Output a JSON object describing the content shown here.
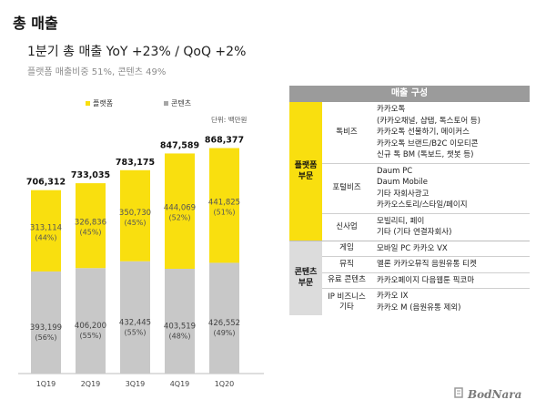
{
  "page_title": "총 매출",
  "headline": "1분기 총 매출  YoY +23% / QoQ +2%",
  "subline": "플랫폼 매출비중 51%, 콘텐츠 49%",
  "unit": "단위: 백만원",
  "legend": [
    {
      "name": "플랫폼",
      "color": "#f9df0f"
    },
    {
      "name": "콘텐츠",
      "color": "#a6a6a6"
    }
  ],
  "chart_data": {
    "type": "bar",
    "stacked": true,
    "categories": [
      "1Q19",
      "2Q19",
      "3Q19",
      "4Q19",
      "1Q20"
    ],
    "series": [
      {
        "name": "콘텐츠",
        "color": "#c8c8c8",
        "values": [
          393199,
          406200,
          432445,
          403519,
          426552
        ],
        "value_labels": [
          "393,199",
          "406,200",
          "432,445",
          "403,519",
          "426,552"
        ],
        "share_labels": [
          "(56%)",
          "(55%)",
          "(55%)",
          "(48%)",
          "(49%)"
        ]
      },
      {
        "name": "플랫폼",
        "color": "#f9df0f",
        "values": [
          313114,
          326836,
          350730,
          444069,
          441825
        ],
        "value_labels": [
          "313,114",
          "326,836",
          "350,730",
          "444,069",
          "441,825"
        ],
        "share_labels": [
          "(44%)",
          "(45%)",
          "(45%)",
          "(52%)",
          "(51%)"
        ]
      }
    ],
    "totals": [
      706312,
      733035,
      783175,
      847589,
      868377
    ],
    "total_labels": [
      "706,312",
      "733,035",
      "783,175",
      "847,589",
      "868,377"
    ],
    "ylim": [
      0,
      900000
    ],
    "grid": false,
    "legend_position": "top-left"
  },
  "table": {
    "header": "매출 구성",
    "sections": [
      {
        "category": "플랫폼\n부문",
        "style": "platform",
        "groups": [
          {
            "name": "톡비즈",
            "items": [
              "카카오톡",
              "(카카오채널, 샵탭, 톡스토어 등)",
              "카카오톡 선물하기, 메이커스",
              "카카오톡 브랜드/B2C 이모티콘",
              "신규 톡 BM (톡보드, 챗봇 등)"
            ]
          },
          {
            "name": "포털비즈",
            "items": [
              "Daum PC",
              "Daum Mobile",
              "기타 자회사광고",
              "카카오스토리/스타일/페이지"
            ]
          },
          {
            "name": "신사업",
            "items": [
              "모빌리티, 페이",
              "기타 (기타 연결자회사)"
            ]
          }
        ]
      },
      {
        "category": "콘텐츠\n부문",
        "style": "content",
        "groups": [
          {
            "name": "게임",
            "items": [
              "모바일    PC     카카오 VX"
            ]
          },
          {
            "name": "뮤직",
            "items": [
              "멜론    카카오뮤직   음원유통   티켓"
            ]
          },
          {
            "name": "유료 콘텐츠",
            "items": [
              "카카오페이지   다음웹툰   픽코마"
            ]
          },
          {
            "name": "IP 비즈니스\n기타",
            "items": [
              "카카오 IX",
              "카카오 M (음원유통 제외)"
            ]
          }
        ]
      }
    ]
  },
  "logo": "BodNara"
}
